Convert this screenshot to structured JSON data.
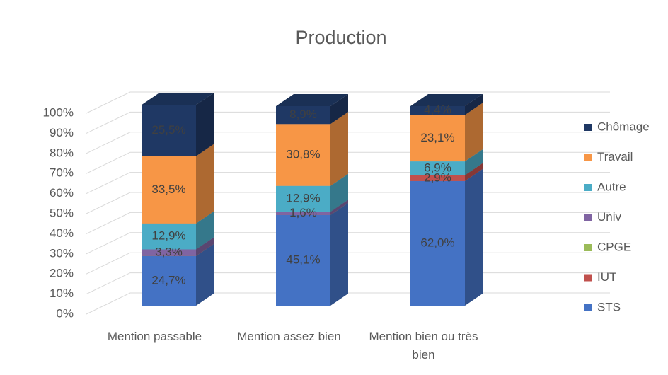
{
  "chart_data": {
    "type": "bar3d_stacked",
    "title": "Production",
    "categories": [
      "Mention passable",
      "Mention assez bien",
      "Mention bien ou très bien"
    ],
    "series": [
      {
        "name": "STS",
        "color": "#4472c4",
        "values": [
          24.7,
          45.1,
          62.0
        ],
        "value_labels": [
          "24,7%",
          "45,1%",
          "62,0%"
        ]
      },
      {
        "name": "IUT",
        "color": "#c0504d",
        "values": [
          0,
          0,
          2.9
        ],
        "value_labels": [
          null,
          null,
          "2,9%"
        ]
      },
      {
        "name": "CPGE",
        "color": "#9bbb59",
        "values": [
          0,
          0,
          0
        ],
        "value_labels": [
          null,
          null,
          null
        ]
      },
      {
        "name": "Univ",
        "color": "#8064a2",
        "values": [
          3.3,
          1.6,
          0
        ],
        "value_labels": [
          "3,3%",
          "1,6%",
          null
        ]
      },
      {
        "name": "Autre",
        "color": "#4bacc6",
        "values": [
          12.9,
          12.9,
          6.9
        ],
        "value_labels": [
          "12,9%",
          "12,9%",
          "6,9%"
        ]
      },
      {
        "name": "Travail",
        "color": "#f79646",
        "values": [
          33.5,
          30.8,
          23.1
        ],
        "value_labels": [
          "33,5%",
          "30,8%",
          "23,1%"
        ]
      },
      {
        "name": "Chômage",
        "color": "#1f3864",
        "values": [
          25.5,
          8.9,
          4.4
        ],
        "value_labels": [
          "25,5%",
          "8,9%",
          "4,4%"
        ]
      }
    ],
    "ylim": [
      0,
      100
    ],
    "yticks": [
      {
        "value": 0,
        "label": "0%"
      },
      {
        "value": 10,
        "label": "10%"
      },
      {
        "value": 20,
        "label": "20%"
      },
      {
        "value": 30,
        "label": "30%"
      },
      {
        "value": 40,
        "label": "40%"
      },
      {
        "value": 50,
        "label": "50%"
      },
      {
        "value": 60,
        "label": "60%"
      },
      {
        "value": 70,
        "label": "70%"
      },
      {
        "value": 80,
        "label": "80%"
      },
      {
        "value": 90,
        "label": "90%"
      },
      {
        "value": 100,
        "label": "100%"
      }
    ],
    "grid": true,
    "legend": "right"
  }
}
